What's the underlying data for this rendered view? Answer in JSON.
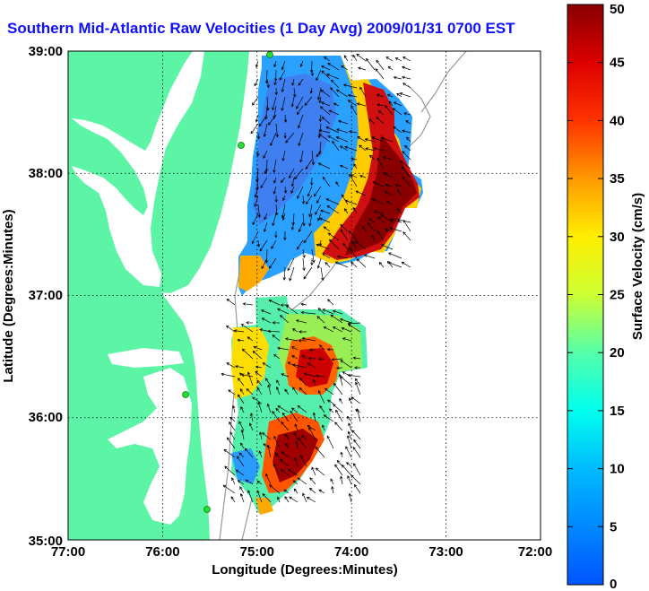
{
  "title": "Southern Mid-Atlantic Raw Velocities (1 Day Avg) 2009/01/31 0700 EST",
  "x_axis": {
    "label": "Longitude (Degrees:Minutes)",
    "ticks": [
      "77:00",
      "76:00",
      "75:00",
      "74:00",
      "73:00",
      "72:00"
    ]
  },
  "y_axis": {
    "label": "Latitude (Degrees:Minutes)",
    "ticks": [
      "39:00",
      "38:00",
      "37:00",
      "36:00",
      "35:00"
    ]
  },
  "colorbar": {
    "label": "Surface Velocity (cm/s)",
    "min": 0,
    "max": 50,
    "ticks": [
      "0",
      "5",
      "10",
      "15",
      "20",
      "25",
      "30",
      "35",
      "40",
      "45",
      "50"
    ]
  },
  "colors": {
    "land": "#5cf5a5",
    "water": "#ffffff",
    "title": "#1010ff",
    "station": "#22dd33"
  },
  "layers": {
    "grid": "dotted",
    "coastline": "land fill",
    "bathymetry": "grey isobaths",
    "vectors": "black current arrows",
    "stations": "green markers"
  },
  "extent": {
    "lon": [
      -77,
      -72
    ],
    "lat": [
      35,
      39
    ]
  }
}
